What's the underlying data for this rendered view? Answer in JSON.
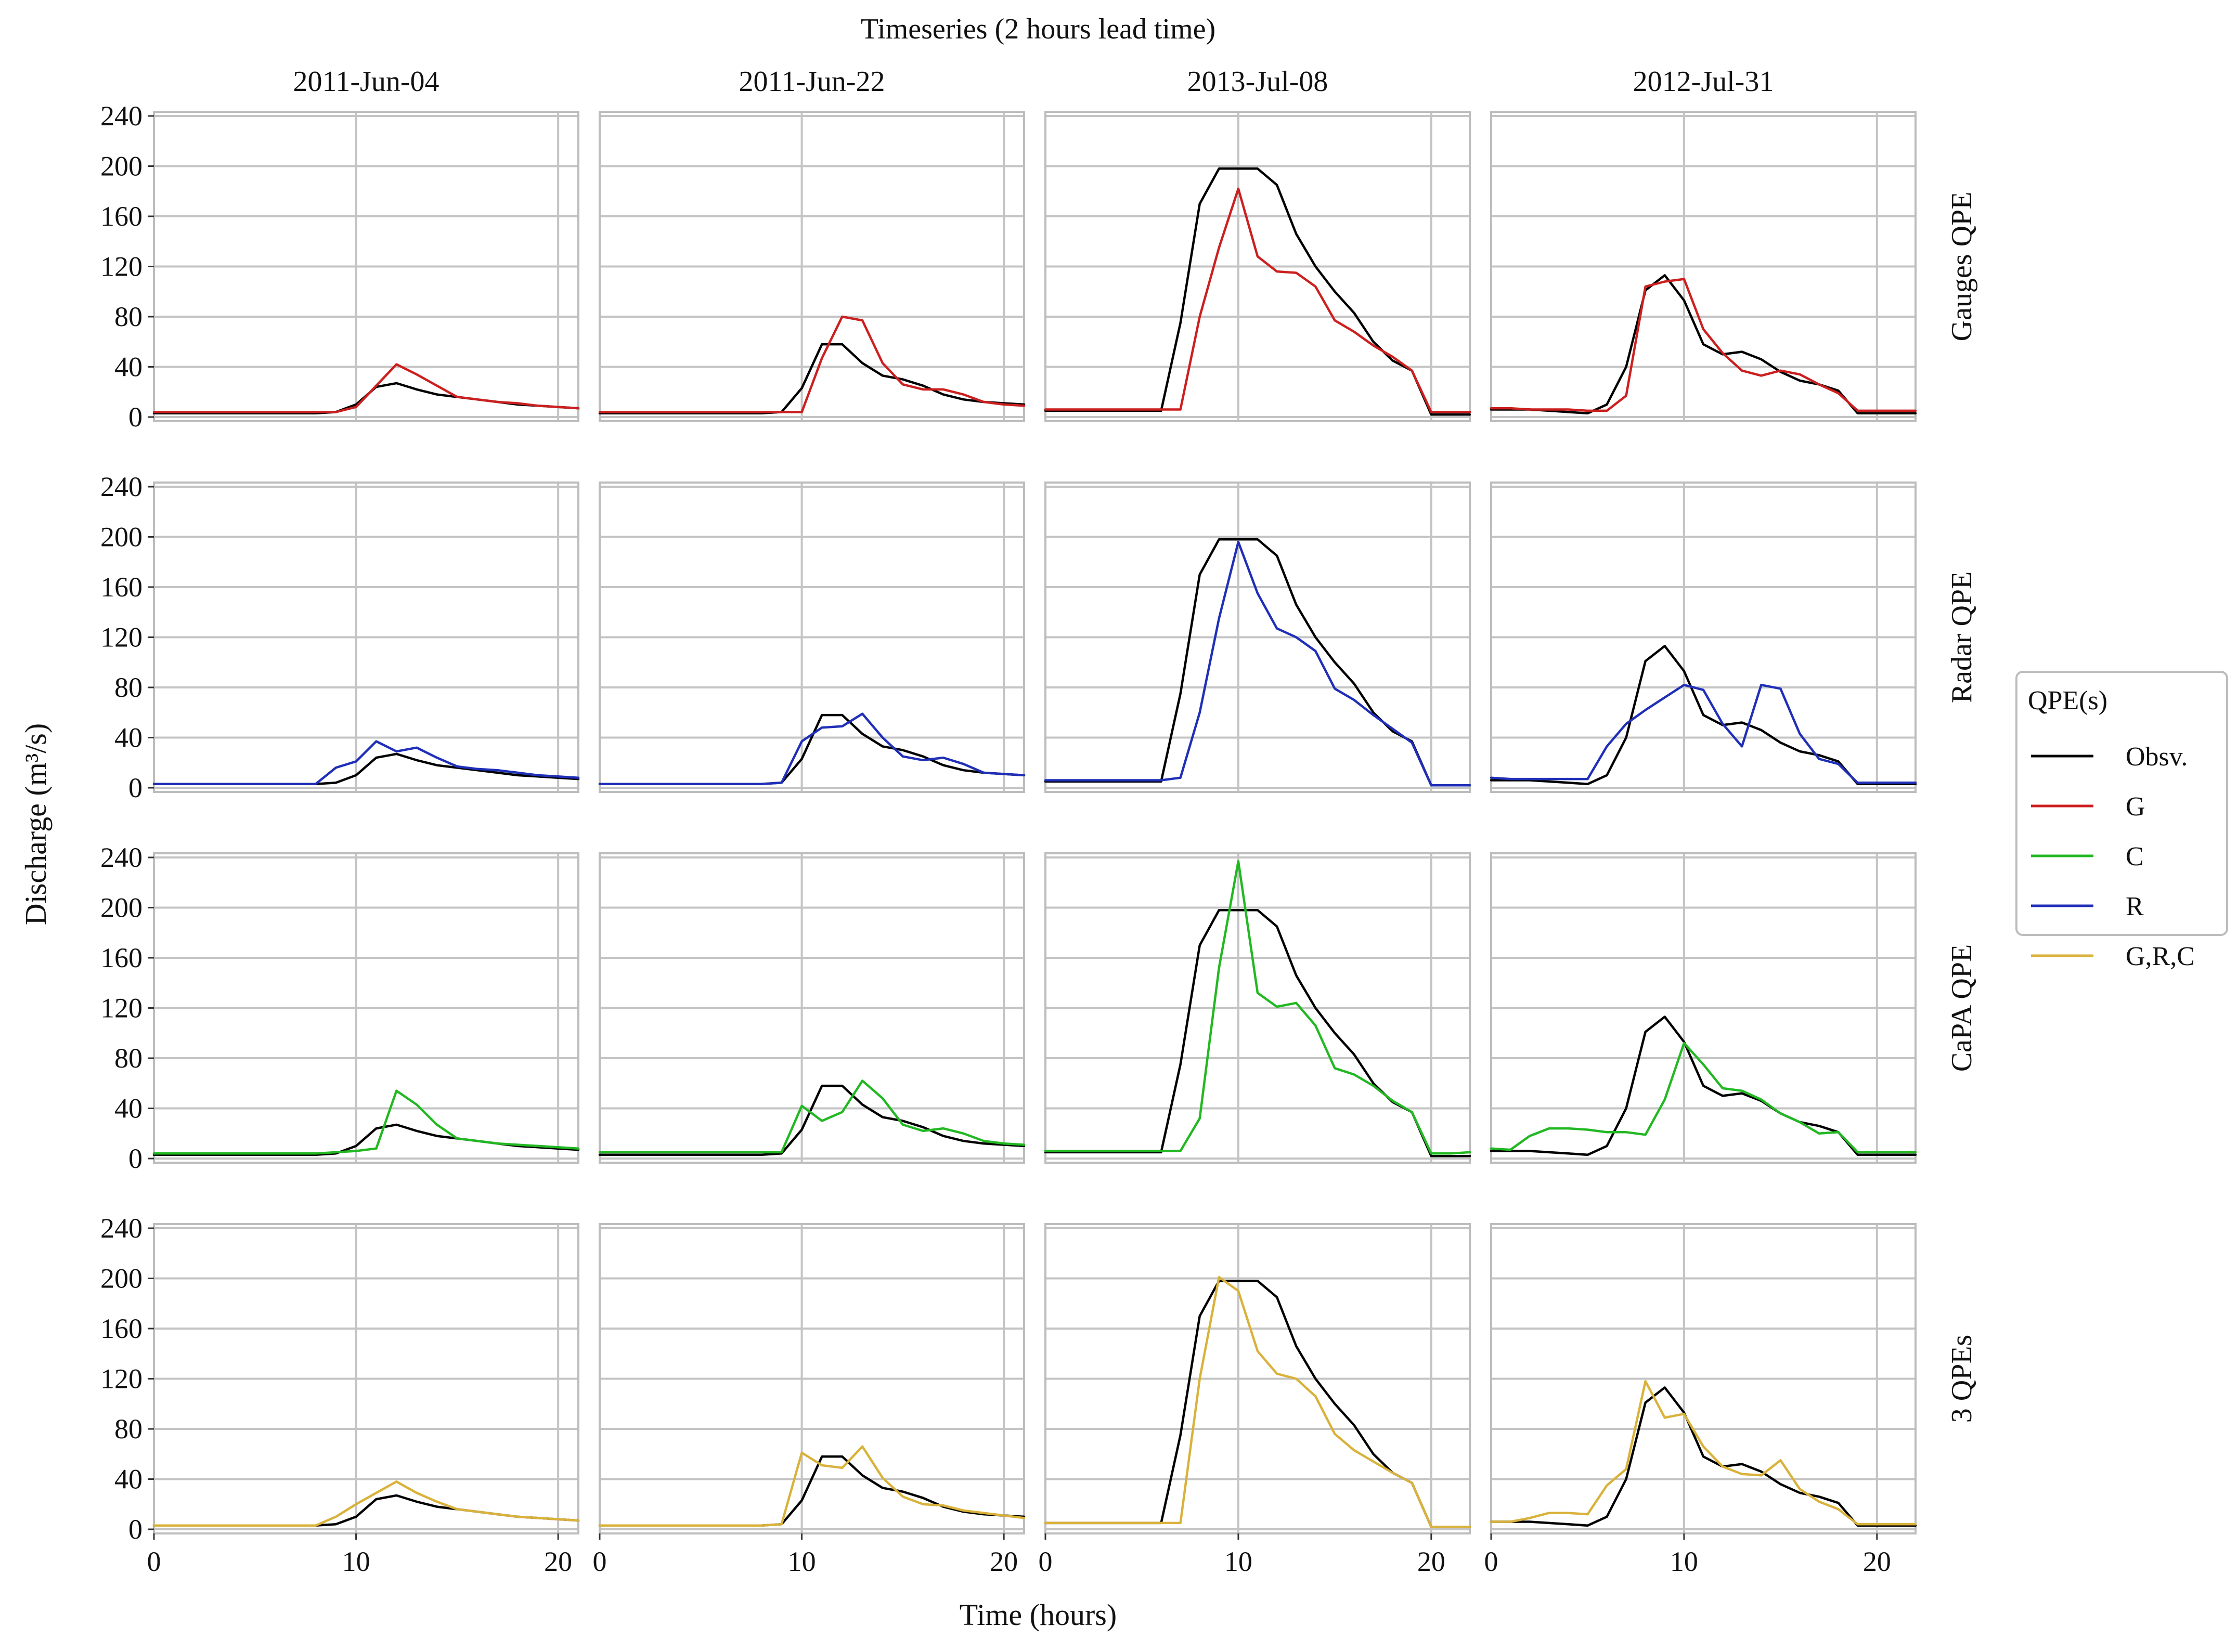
{
  "chart_data": {
    "type": "line",
    "title": "Timeseries (2 hours lead time)",
    "xlabel": "Time (hours)",
    "ylabel": "Discharge (m³/s)",
    "ylim": [
      0,
      240
    ],
    "yticks": [
      0,
      40,
      80,
      120,
      160,
      200,
      240
    ],
    "xticks": [
      0,
      10,
      20
    ],
    "grid": true,
    "legend": {
      "title": "QPE(s)",
      "placement": "right",
      "entries": [
        {
          "key": "obs",
          "label": "Obsv.",
          "color": "#000000"
        },
        {
          "key": "G",
          "label": "G",
          "color": "#cc1f1f"
        },
        {
          "key": "C",
          "label": "C",
          "color": "#22b822"
        },
        {
          "key": "R",
          "label": "R",
          "color": "#1f2fb8"
        },
        {
          "key": "GRC",
          "label": "G,R,C",
          "color": "#d9b23b"
        }
      ]
    },
    "rows": [
      {
        "label": "Gauges QPE",
        "series": "G"
      },
      {
        "label": "Radar QPE",
        "series": "R"
      },
      {
        "label": "CaPA QPE",
        "series": "C"
      },
      {
        "label": "3 QPEs",
        "series": "GRC"
      }
    ],
    "events": [
      {
        "label": "2011-Jun-04",
        "xlim": [
          0,
          21
        ],
        "x": [
          0,
          1,
          2,
          3,
          4,
          5,
          6,
          7,
          8,
          9,
          10,
          11,
          12,
          13,
          14,
          15,
          16,
          17,
          18,
          19,
          20,
          21
        ],
        "obs": [
          3,
          3,
          3,
          3,
          3,
          3,
          3,
          3,
          3,
          4,
          10,
          24,
          27,
          22,
          18,
          16,
          14,
          12,
          10,
          9,
          8,
          7
        ],
        "G": [
          4,
          4,
          4,
          4,
          4,
          4,
          4,
          4,
          4,
          4,
          8,
          25,
          42,
          34,
          25,
          16,
          14,
          12,
          11,
          9,
          8,
          7
        ],
        "R": [
          3,
          3,
          3,
          3,
          3,
          3,
          3,
          3,
          3,
          16,
          21,
          37,
          29,
          32,
          24,
          17,
          15,
          14,
          12,
          10,
          9,
          8
        ],
        "C": [
          4,
          4,
          4,
          4,
          4,
          4,
          4,
          4,
          4,
          5,
          6,
          8,
          54,
          43,
          27,
          16,
          14,
          12,
          11,
          10,
          9,
          8
        ],
        "GRC": [
          3,
          3,
          3,
          3,
          3,
          3,
          3,
          3,
          3,
          10,
          20,
          29,
          38,
          29,
          22,
          16,
          14,
          12,
          10,
          9,
          8,
          7
        ]
      },
      {
        "label": "2011-Jun-22",
        "xlim": [
          0,
          21
        ],
        "x": [
          0,
          1,
          2,
          3,
          4,
          5,
          6,
          7,
          8,
          9,
          10,
          11,
          12,
          13,
          14,
          15,
          16,
          17,
          18,
          19,
          20,
          21
        ],
        "obs": [
          3,
          3,
          3,
          3,
          3,
          3,
          3,
          3,
          3,
          4,
          23,
          58,
          58,
          43,
          33,
          30,
          25,
          18,
          14,
          12,
          11,
          10
        ],
        "G": [
          4,
          4,
          4,
          4,
          4,
          4,
          4,
          4,
          4,
          4,
          4,
          47,
          80,
          77,
          43,
          26,
          22,
          22,
          18,
          12,
          10,
          9
        ],
        "R": [
          3,
          3,
          3,
          3,
          3,
          3,
          3,
          3,
          3,
          4,
          37,
          48,
          49,
          59,
          40,
          25,
          22,
          24,
          19,
          12,
          11,
          10
        ],
        "C": [
          5,
          5,
          5,
          5,
          5,
          5,
          5,
          5,
          5,
          5,
          42,
          30,
          37,
          62,
          48,
          27,
          22,
          24,
          20,
          14,
          12,
          11
        ],
        "GRC": [
          3,
          3,
          3,
          3,
          3,
          3,
          3,
          3,
          3,
          4,
          61,
          51,
          49,
          66,
          41,
          26,
          20,
          19,
          15,
          13,
          11,
          9
        ]
      },
      {
        "label": "2013-Jul-08",
        "xlim": [
          0,
          22
        ],
        "x": [
          0,
          1,
          2,
          3,
          4,
          5,
          6,
          7,
          8,
          9,
          10,
          11,
          12,
          13,
          14,
          15,
          16,
          17,
          18,
          19,
          20,
          21,
          22
        ],
        "obs": [
          5,
          5,
          5,
          5,
          5,
          5,
          5,
          75,
          170,
          198,
          198,
          198,
          185,
          146,
          120,
          100,
          83,
          60,
          45,
          37,
          2,
          2,
          2
        ],
        "G": [
          6,
          6,
          6,
          6,
          6,
          6,
          6,
          6,
          80,
          135,
          182,
          128,
          116,
          115,
          104,
          77,
          68,
          57,
          48,
          37,
          4,
          4,
          4
        ],
        "R": [
          6,
          6,
          6,
          6,
          6,
          6,
          6,
          8,
          60,
          135,
          196,
          155,
          127,
          120,
          109,
          79,
          70,
          58,
          47,
          36,
          2,
          2,
          2
        ],
        "C": [
          6,
          6,
          6,
          6,
          6,
          6,
          6,
          6,
          32,
          152,
          237,
          132,
          121,
          124,
          106,
          72,
          67,
          58,
          46,
          37,
          4,
          4,
          5
        ],
        "GRC": [
          5,
          5,
          5,
          5,
          5,
          5,
          5,
          5,
          120,
          201,
          190,
          142,
          124,
          120,
          106,
          76,
          63,
          54,
          45,
          37,
          2,
          2,
          2
        ]
      },
      {
        "label": "2012-Jul-31",
        "xlim": [
          0,
          22
        ],
        "x": [
          0,
          1,
          2,
          3,
          4,
          5,
          6,
          7,
          8,
          9,
          10,
          11,
          12,
          13,
          14,
          15,
          16,
          17,
          18,
          19,
          20,
          21,
          22
        ],
        "obs": [
          6,
          6,
          6,
          5,
          4,
          3,
          10,
          40,
          101,
          113,
          93,
          58,
          50,
          52,
          46,
          36,
          29,
          26,
          21,
          3,
          3,
          3,
          3
        ],
        "G": [
          7,
          7,
          6,
          6,
          6,
          5,
          5,
          17,
          104,
          108,
          110,
          70,
          51,
          37,
          33,
          37,
          34,
          26,
          19,
          5,
          5,
          5,
          5
        ],
        "R": [
          8,
          7,
          7,
          7,
          7,
          7,
          33,
          51,
          62,
          72,
          82,
          78,
          51,
          33,
          82,
          79,
          43,
          23,
          19,
          4,
          4,
          4,
          4
        ],
        "C": [
          8,
          7,
          18,
          24,
          24,
          23,
          21,
          21,
          19,
          47,
          92,
          75,
          56,
          54,
          47,
          36,
          29,
          20,
          21,
          5,
          5,
          5,
          5
        ],
        "GRC": [
          6,
          6,
          9,
          13,
          13,
          12,
          35,
          48,
          118,
          89,
          92,
          66,
          50,
          44,
          43,
          55,
          32,
          22,
          16,
          4,
          4,
          4,
          4
        ]
      }
    ]
  }
}
